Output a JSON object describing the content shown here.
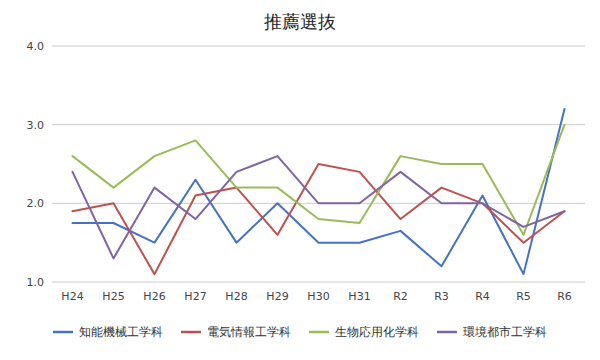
{
  "chart_data": {
    "type": "line",
    "title": "推薦選抜",
    "categories": [
      "H24",
      "H25",
      "H26",
      "H27",
      "H28",
      "H29",
      "H30",
      "H31",
      "R2",
      "R3",
      "R4",
      "R5",
      "R6"
    ],
    "series": [
      {
        "name": "知能機械工学科",
        "color": "#4472C4",
        "values": [
          1.75,
          1.75,
          1.5,
          2.3,
          1.5,
          2.0,
          1.5,
          1.5,
          1.65,
          1.2,
          2.1,
          1.1,
          3.2
        ]
      },
      {
        "name": "電気情報工学科",
        "color": "#C0504D",
        "values": [
          1.9,
          2.0,
          1.1,
          2.1,
          2.2,
          1.6,
          2.5,
          2.4,
          1.8,
          2.2,
          2.0,
          1.5,
          1.9
        ]
      },
      {
        "name": "生物応用化学科",
        "color": "#9BBB59",
        "values": [
          2.6,
          2.2,
          2.6,
          2.8,
          2.2,
          2.2,
          1.8,
          1.75,
          2.6,
          2.5,
          2.5,
          1.6,
          3.0
        ]
      },
      {
        "name": "環境都市工学科",
        "color": "#8064A2",
        "values": [
          2.4,
          1.3,
          2.2,
          1.8,
          2.4,
          2.6,
          2.0,
          2.0,
          2.4,
          2.0,
          2.0,
          1.7,
          1.9
        ]
      }
    ],
    "ylim": [
      1.0,
      4.0
    ],
    "yticks": [
      {
        "value": 1.0,
        "label": "1.0"
      },
      {
        "value": 2.0,
        "label": "2.0"
      },
      {
        "value": 3.0,
        "label": "3.0"
      },
      {
        "value": 4.0,
        "label": "4.0"
      }
    ],
    "grid": true,
    "legend": "bottom"
  }
}
